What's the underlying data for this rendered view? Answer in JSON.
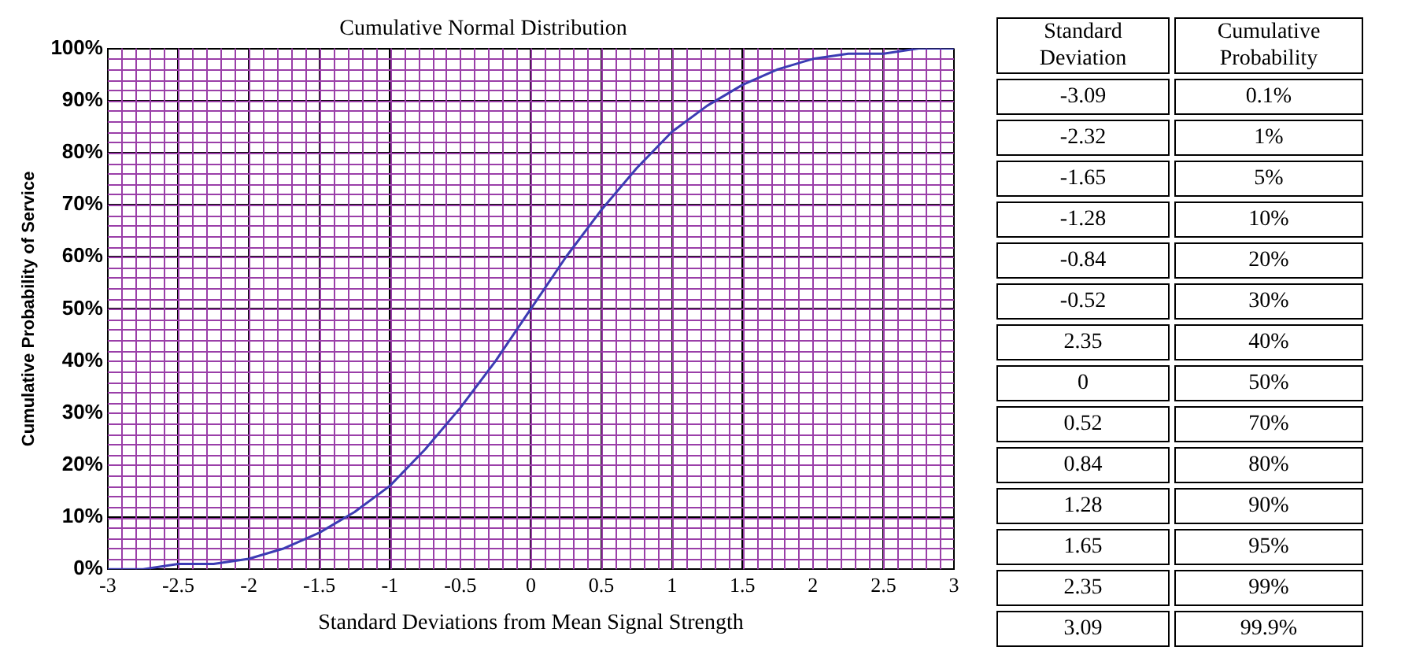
{
  "chart_data": [
    {
      "type": "line",
      "title": "Cumulative Normal Distribution",
      "xlabel": "Standard Deviations from Mean Signal Strength",
      "ylabel": "Cumulative Probability of Service",
      "x": [
        -3,
        -2.75,
        -2.5,
        -2.25,
        -2,
        -1.75,
        -1.5,
        -1.25,
        -1,
        -0.75,
        -0.5,
        -0.25,
        0,
        0.25,
        0.5,
        0.75,
        1,
        1.25,
        1.5,
        1.75,
        2,
        2.25,
        2.5,
        2.75,
        3
      ],
      "series": [
        {
          "color": "#3c3cb4",
          "values": [
            0,
            0,
            1,
            1,
            2,
            4,
            7,
            11,
            16,
            23,
            31,
            40,
            50,
            60,
            69,
            77,
            84,
            89,
            93,
            96,
            98,
            99,
            99,
            100,
            100
          ]
        }
      ],
      "xlim": [
        -3,
        3
      ],
      "xticks": [
        -3,
        -2.5,
        -2,
        -1.5,
        -1,
        -0.5,
        0,
        0.5,
        1,
        1.5,
        2,
        2.5,
        3
      ],
      "ylim": [
        0,
        100
      ],
      "yticks": [
        {
          "value": 0,
          "label": "0%"
        },
        {
          "value": 10,
          "label": "10%"
        },
        {
          "value": 20,
          "label": "20%"
        },
        {
          "value": 30,
          "label": "30%"
        },
        {
          "value": 40,
          "label": "40%"
        },
        {
          "value": 50,
          "label": "50%"
        },
        {
          "value": 60,
          "label": "60%"
        },
        {
          "value": 70,
          "label": "70%"
        },
        {
          "value": 80,
          "label": "80%"
        },
        {
          "value": 90,
          "label": "90%"
        },
        {
          "value": 100,
          "label": "100%"
        }
      ],
      "grid": true,
      "legend": false,
      "marker": "none",
      "line_style": "solid"
    },
    {
      "type": "other",
      "xlabel": "Standard Deviation",
      "ylabel": "Cumulative Probability",
      "categories": [
        "-3.09",
        "-2.32",
        "-1.65",
        "-1.28",
        "-0.84",
        "-0.52",
        "2.35",
        "0",
        "0.52",
        "0.84",
        "1.28",
        "1.65",
        "2.35",
        "3.09"
      ],
      "value_labels": [
        "0.1%",
        "1%",
        "5%",
        "10%",
        "20%",
        "30%",
        "40%",
        "50%",
        "70%",
        "80%",
        "90%",
        "95%",
        "99%",
        "99.9%"
      ]
    }
  ]
}
